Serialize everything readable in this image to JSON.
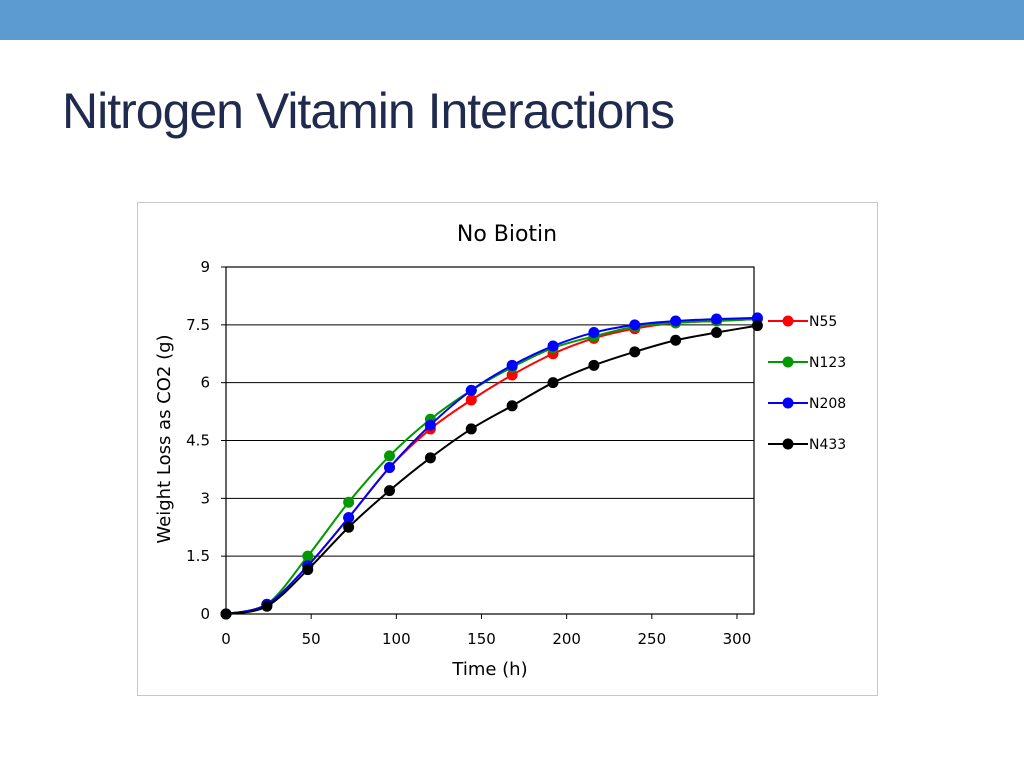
{
  "slide": {
    "title": "Nitrogen Vitamin Interactions",
    "top_bar_color": "#5b9bd1",
    "title_color": "#1f2a4e"
  },
  "chart_data": {
    "type": "line",
    "title": "No Biotin",
    "xlabel": "Time (h)",
    "ylabel": "Weight Loss as CO2  (g)",
    "xlim": [
      0,
      310
    ],
    "ylim": [
      0,
      9
    ],
    "xticks": [
      0,
      50,
      100,
      150,
      200,
      250,
      300
    ],
    "yticks": [
      0,
      1.5,
      3,
      4.5,
      6,
      7.5,
      9
    ],
    "ytick_labels": [
      "0",
      "1.5",
      "3",
      "4.5",
      "6",
      "7.5",
      "9"
    ],
    "grid": "horizontal",
    "legend_position": "right",
    "x": [
      0,
      24,
      48,
      72,
      96,
      120,
      144,
      168,
      192,
      216,
      240,
      264,
      288,
      312
    ],
    "series": [
      {
        "name": "N55",
        "color": "#ff0000",
        "values": [
          0,
          0.25,
          1.25,
          2.5,
          3.8,
          4.8,
          5.55,
          6.2,
          6.75,
          7.15,
          7.4,
          7.55,
          7.6,
          7.65
        ]
      },
      {
        "name": "N123",
        "color": "#009900",
        "values": [
          0,
          0.25,
          1.5,
          2.9,
          4.1,
          5.05,
          5.8,
          6.4,
          6.9,
          7.2,
          7.45,
          7.55,
          7.6,
          7.65
        ]
      },
      {
        "name": "N208",
        "color": "#0000ff",
        "values": [
          0,
          0.25,
          1.25,
          2.5,
          3.8,
          4.9,
          5.8,
          6.45,
          6.95,
          7.3,
          7.5,
          7.6,
          7.65,
          7.68
        ]
      },
      {
        "name": "N433",
        "color": "#000000",
        "values": [
          0,
          0.2,
          1.15,
          2.25,
          3.2,
          4.05,
          4.8,
          5.4,
          6.0,
          6.45,
          6.8,
          7.1,
          7.3,
          7.48
        ]
      }
    ]
  }
}
